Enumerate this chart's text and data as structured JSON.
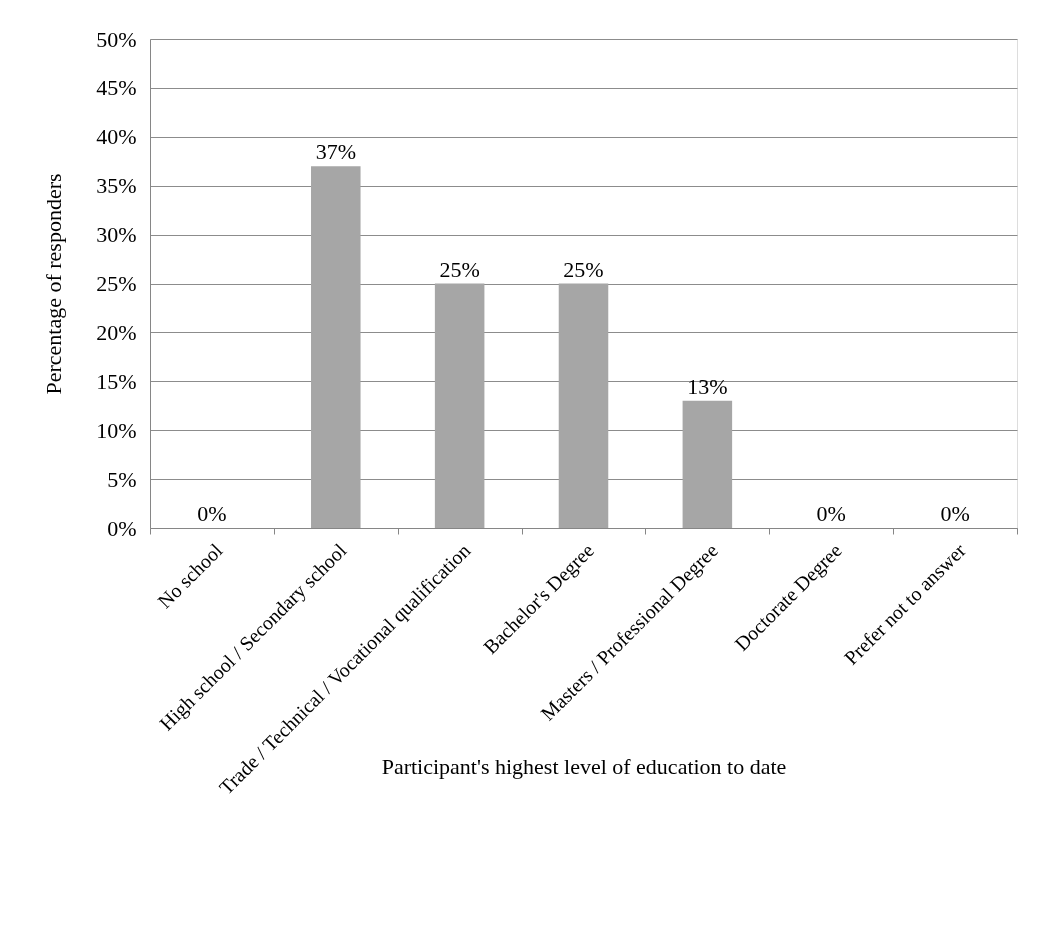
{
  "chart_data": {
    "type": "bar",
    "xlabel": "Participant's highest level of education to date",
    "ylabel": "Percentage of responders",
    "categories": [
      "No school",
      "High school / Secondary school",
      "Trade / Technical / Vocational qualification",
      "Bachelor's Degree",
      "Masters / Professional Degree",
      "Doctorate Degree",
      "Prefer not to answer"
    ],
    "values": [
      0,
      37,
      25,
      25,
      13,
      0,
      0
    ],
    "color": "#a6a6a6",
    "value_labels": [
      "0%",
      "37%",
      "25%",
      "25%",
      "13%",
      "0%",
      "0%"
    ],
    "ylim": [
      0,
      50
    ],
    "yticks": [
      {
        "value": 0,
        "label": "0%"
      },
      {
        "value": 5,
        "label": "5%"
      },
      {
        "value": 10,
        "label": "10%"
      },
      {
        "value": 15,
        "label": "15%"
      },
      {
        "value": 20,
        "label": "20%"
      },
      {
        "value": 25,
        "label": "25%"
      },
      {
        "value": 30,
        "label": "30%"
      },
      {
        "value": 35,
        "label": "35%"
      },
      {
        "value": 40,
        "label": "40%"
      },
      {
        "value": 45,
        "label": "45%"
      },
      {
        "value": 50,
        "label": "50%"
      }
    ],
    "grid": "y"
  }
}
